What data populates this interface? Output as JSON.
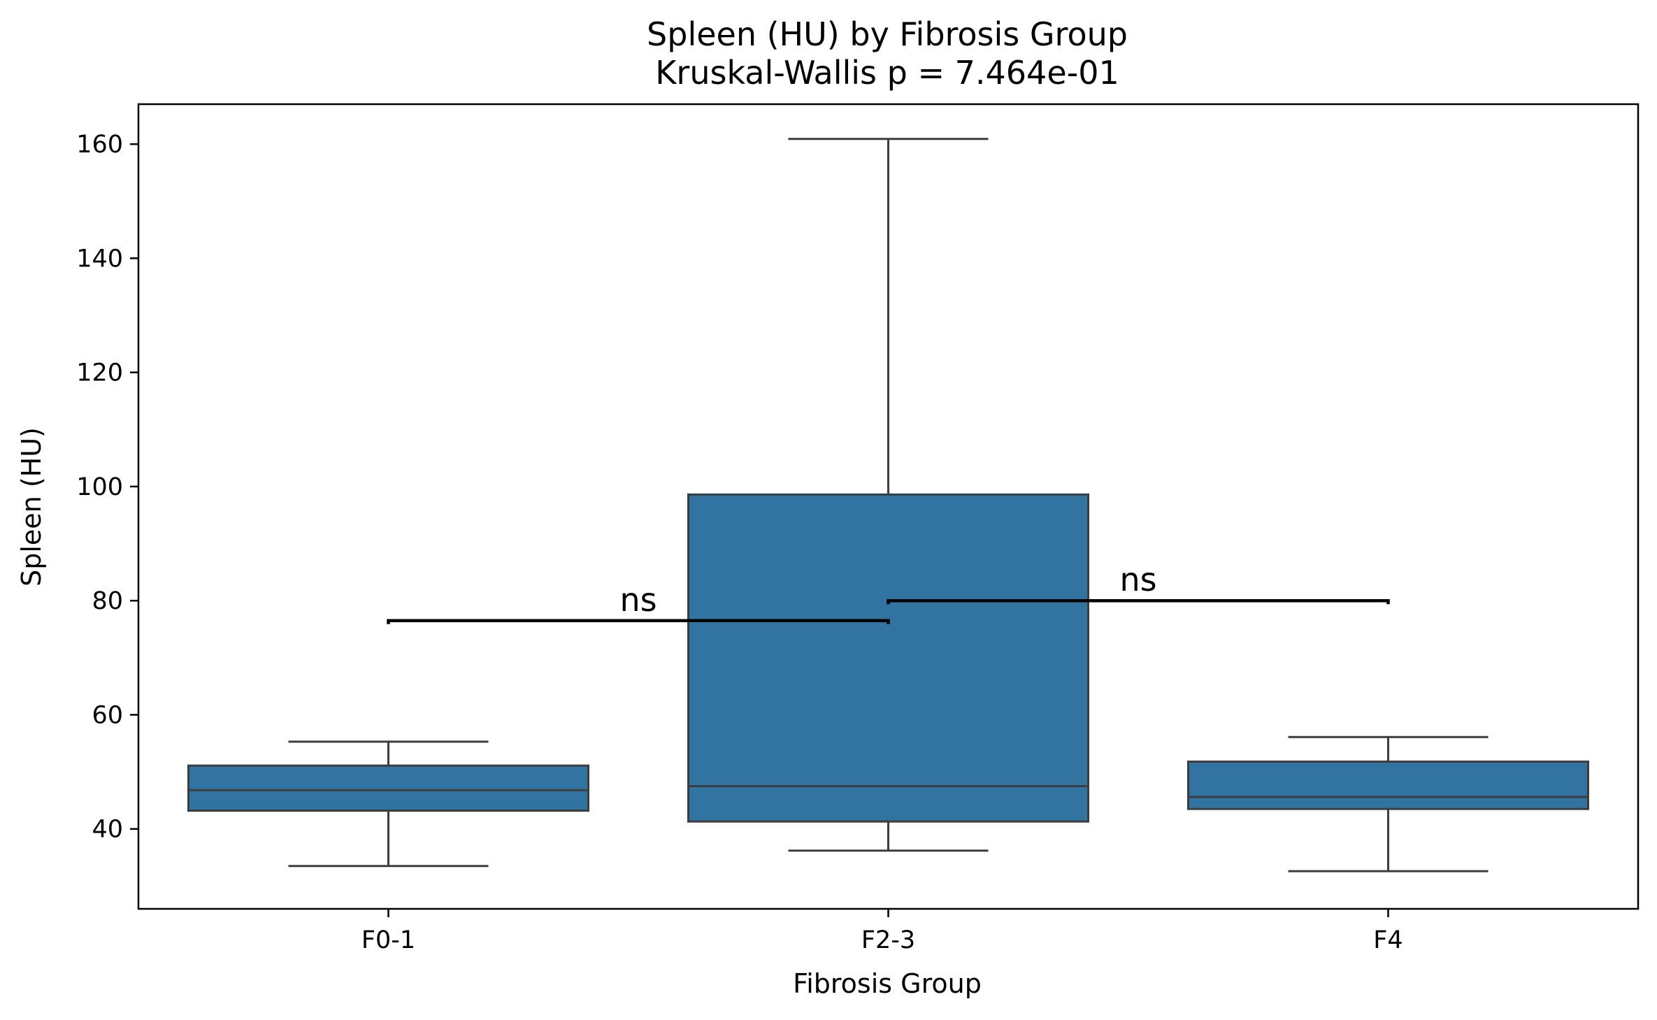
{
  "chart_data": {
    "type": "box",
    "title": "Spleen (HU) by Fibrosis Group",
    "subtitle": "Kruskal-Wallis p = 7.464e-01",
    "xlabel": "Fibrosis Group",
    "ylabel": "Spleen (HU)",
    "categories": [
      "F0-1",
      "F2-3",
      "F4"
    ],
    "ylim": [
      26,
      167
    ],
    "yticks": [
      40,
      60,
      80,
      100,
      120,
      140,
      160
    ],
    "box_color": "#3274a1",
    "edge_color": "#3d3d3d",
    "boxes": [
      {
        "category": "F0-1",
        "whisker_low": 33.5,
        "q1": 43.2,
        "median": 46.8,
        "q3": 51.1,
        "whisker_high": 55.3
      },
      {
        "category": "F2-3",
        "whisker_low": 36.2,
        "q1": 41.3,
        "median": 47.5,
        "q3": 98.6,
        "whisker_high": 160.9
      },
      {
        "category": "F4",
        "whisker_low": 32.6,
        "q1": 43.5,
        "median": 45.6,
        "q3": 51.8,
        "whisker_high": 56.1
      }
    ],
    "annotations": [
      {
        "from": "F0-1",
        "to": "F2-3",
        "y": 76.5,
        "label": "ns"
      },
      {
        "from": "F2-3",
        "to": "F4",
        "y": 80.0,
        "label": "ns"
      }
    ]
  }
}
